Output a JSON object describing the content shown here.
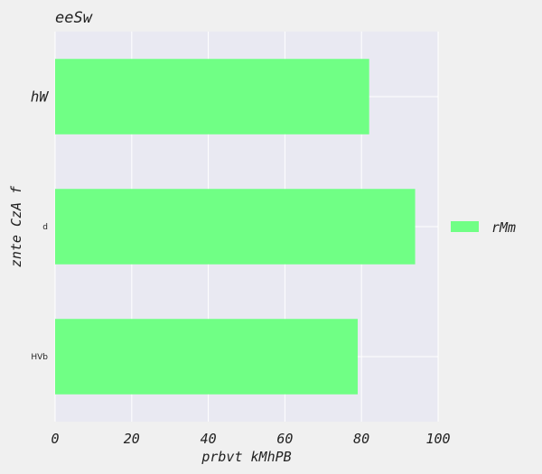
{
  "chart_data": {
    "type": "bar",
    "orientation": "horizontal",
    "title": "eeSw",
    "xlabel": "prbvt kMhPB",
    "ylabel": "znte  CzA f",
    "categories": [
      "hW",
      "d",
      "HVb"
    ],
    "series": [
      {
        "name": "rMm",
        "values": [
          82,
          94,
          79
        ]
      }
    ],
    "xlim": [
      0,
      100
    ],
    "xticks": [
      0,
      20,
      40,
      60,
      80,
      100
    ],
    "grid": true,
    "legend_position": "right",
    "colors": {
      "bar": "#70ff85",
      "plot_background": "#e9e9f2",
      "page_background": "#f0f0f0",
      "grid": "#ffffff",
      "text": "#222222"
    }
  }
}
